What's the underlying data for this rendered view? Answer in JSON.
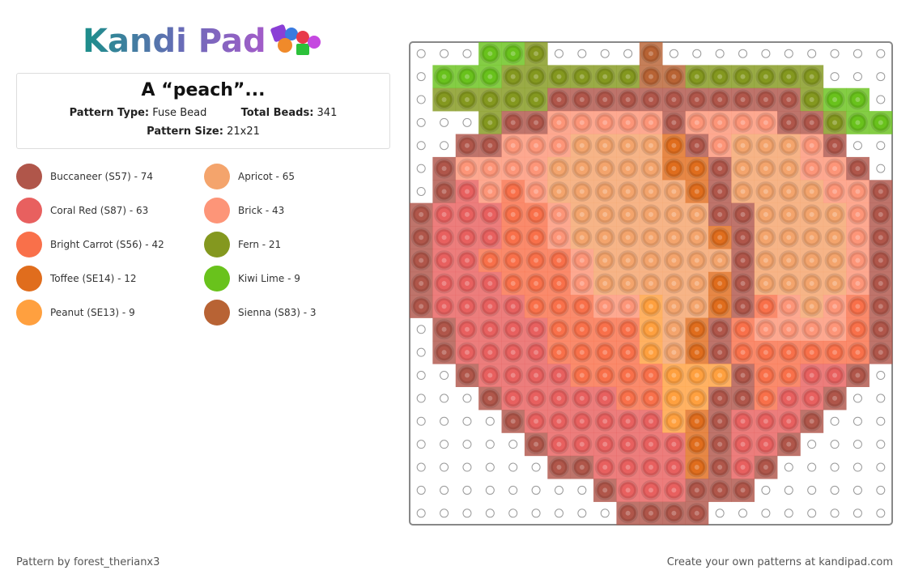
{
  "header": {
    "logo": "Kandi Pad",
    "title": "A “peach”...",
    "pattern_type": {
      "label": "Pattern Type:",
      "value": "Fuse Bead"
    },
    "total_beads": {
      "label": "Total Beads:",
      "value": 341
    },
    "pattern_size": {
      "label": "Pattern Size:",
      "value": "21x21"
    }
  },
  "legend": [
    {
      "label": "Buccaneer (S57) - 74",
      "color": "#b0564a"
    },
    {
      "label": "Coral Red (S87) - 63",
      "color": "#e8605f"
    },
    {
      "label": "Bright Carrot (S56) - 42",
      "color": "#f9704a"
    },
    {
      "label": "Toffee (SE14) - 12",
      "color": "#e06d1d"
    },
    {
      "label": "Peanut (SE13) - 9",
      "color": "#ffa03f"
    },
    {
      "label": "Apricot - 65",
      "color": "#f4a46c"
    },
    {
      "label": "Brick - 43",
      "color": "#fd9578"
    },
    {
      "label": "Fern - 21",
      "color": "#84981f"
    },
    {
      "label": "Kiwi Lime - 9",
      "color": "#69c21c"
    },
    {
      "label": "Sienna (S83) - 3",
      "color": "#b86334"
    }
  ],
  "footer": {
    "credit": "Pattern by forest_therianx3",
    "cta": "Create your own patterns at kandipad.com"
  }
}
